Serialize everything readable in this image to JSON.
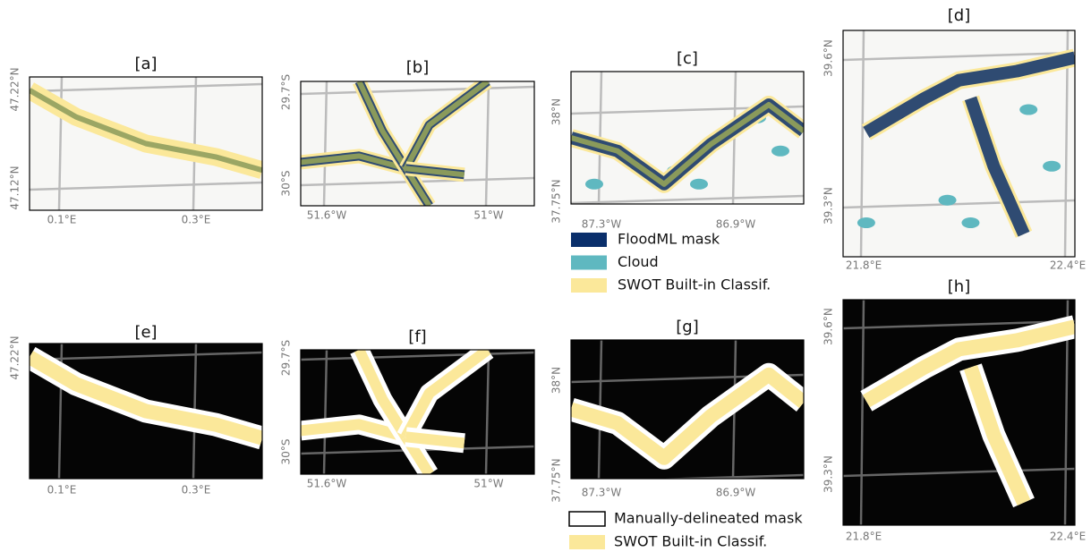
{
  "panels": [
    {
      "title": "[a]",
      "y_labels": [
        "47.22°N",
        "47.12°N"
      ],
      "x_labels": [
        "0.1°E",
        "0.3°E"
      ]
    },
    {
      "title": "[b]",
      "y_labels": [
        "29.7°S",
        "30°S"
      ],
      "x_labels": [
        "51.6°W",
        "51°W"
      ]
    },
    {
      "title": "[c]",
      "y_labels": [
        "38°N",
        "37.75°N"
      ],
      "x_labels": [
        "87.3°W",
        "86.9°W"
      ]
    },
    {
      "title": "[d]",
      "y_labels": [
        "39.6°N",
        "39.3°N"
      ],
      "x_labels": [
        "21.8°E",
        "22.4°E"
      ]
    },
    {
      "title": "[e]",
      "y_labels": [
        "47.22°N"
      ],
      "x_labels": [
        "0.1°E",
        "0.3°E"
      ]
    },
    {
      "title": "[f]",
      "y_labels": [
        "29.7°S",
        "30°S"
      ],
      "x_labels": [
        "51.6°W",
        "51°W"
      ]
    },
    {
      "title": "[g]",
      "y_labels": [
        "38°N",
        "37.75°N"
      ],
      "x_labels": [
        "87.3°W",
        "86.9°W"
      ]
    },
    {
      "title": "[h]",
      "y_labels": [
        "39.6°N",
        "39.3°N"
      ],
      "x_labels": [
        "21.8°E",
        "22.4°E"
      ]
    }
  ],
  "legend_top": [
    "FloodML mask",
    "Cloud",
    "SWOT Built-in Classif."
  ],
  "legend_bottom": [
    "Manually-delineated mask",
    "SWOT Built-in Classif."
  ]
}
